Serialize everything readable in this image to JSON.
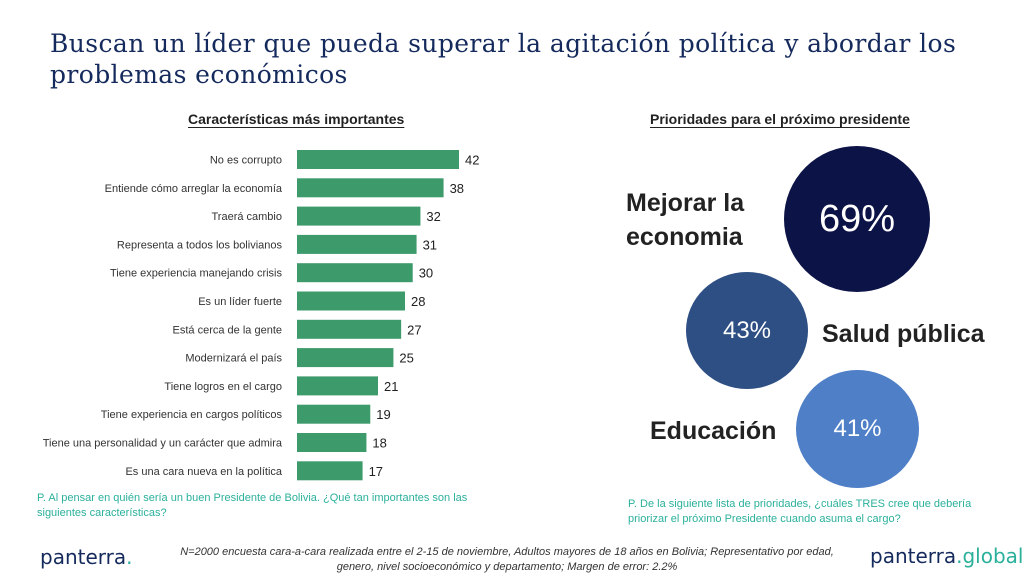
{
  "title": "Buscan un líder que pueda superar la agitación política y abordar los problemas económicos",
  "colors": {
    "title": "#152a5c",
    "bar": "#3d9a6b",
    "note": "#2bb09c",
    "circle_dark": "#0c1346",
    "circle_mid": "#2d4f84",
    "circle_light": "#4f7fc7"
  },
  "left": {
    "heading": "Características más importantes",
    "note": "P. Al pensar en quién sería un buen Presidente de Bolivia. ¿Qué tan importantes son las siguientes características?"
  },
  "chart_data": {
    "type": "bar",
    "orientation": "horizontal",
    "title": "Características más importantes",
    "categories": [
      "No es corrupto",
      "Entiende cómo arreglar la economía",
      "Traerá cambio",
      "Representa a todos los bolivianos",
      "Tiene experiencia manejando crisis",
      "Es un líder fuerte",
      "Está cerca de la gente",
      "Modernizará el país",
      "Tiene logros en el cargo",
      "Tiene experiencia en cargos políticos",
      "Tiene una personalidad y un carácter que admira",
      "Es una cara nueva en la política"
    ],
    "values": [
      42,
      38,
      32,
      31,
      30,
      28,
      27,
      25,
      21,
      19,
      18,
      17
    ],
    "xlabel": "",
    "ylabel": "",
    "xlim": [
      0,
      42
    ],
    "grid": false
  },
  "right": {
    "heading": "Prioridades para el próximo presidente",
    "priorities": [
      {
        "label_line1": "Mejorar la",
        "label_line2": "economia",
        "value": "69%"
      },
      {
        "label": "Salud pública",
        "value": "43%"
      },
      {
        "label": "Educación",
        "value": "41%"
      }
    ],
    "note": "P. De la siguiente lista de prioridades, ¿cuáles TRES cree que debería priorizar el próximo Presidente cuando asuma el cargo?"
  },
  "footer": {
    "methodology": "N=2000 encuesta cara-a-cara realizada entre el 2-15 de noviembre, Adultos mayores de 18 años en Bolivia; Representativo por edad, genero, nivel socioeconómico y departamento; Margen de error: 2.2%",
    "logo_left": "panterra",
    "logo_left_dot": ".",
    "logo_right_main": "panterra",
    "logo_right_suffix": ".global"
  }
}
